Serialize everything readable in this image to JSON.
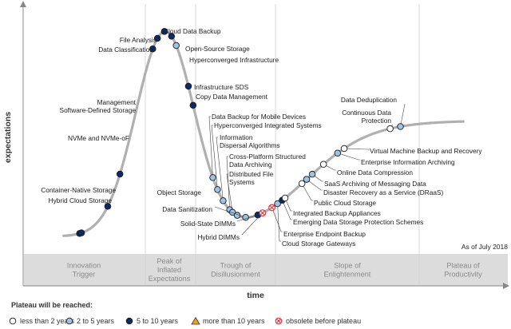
{
  "chart_data": {
    "type": "scatter",
    "xlabel": "time",
    "ylabel": "expectations",
    "as_of": "As of July 2018",
    "phases": [
      {
        "lines": [
          "Innovation",
          "Trigger"
        ]
      },
      {
        "lines": [
          "Peak of",
          "Inflated",
          "Expectations"
        ]
      },
      {
        "lines": [
          "Trough of",
          "Disillusionment"
        ]
      },
      {
        "lines": [
          "Slope of",
          "Enlightenment"
        ]
      },
      {
        "lines": [
          "Plateau of",
          "Productivity"
        ]
      }
    ],
    "legend": {
      "title": "Plateau will be reached:",
      "items": [
        {
          "key": "lt2",
          "label": "less than 2 years",
          "marker": "circle",
          "color": "#ffffff"
        },
        {
          "key": "2to5",
          "label": "2 to 5 years",
          "marker": "circle",
          "color": "#9dc3e6"
        },
        {
          "key": "5to10",
          "label": "5 to 10 years",
          "marker": "circle",
          "color": "#0b2a6b"
        },
        {
          "key": "gt10",
          "label": "more than 10 years",
          "marker": "triangle",
          "color": "#f0a020"
        },
        {
          "key": "obsolete",
          "label": "obsolete before plateau",
          "marker": "crossed",
          "color": "#e8313a"
        }
      ]
    },
    "technologies": [
      {
        "name": "Hybrid Cloud Storage",
        "t": 0.305,
        "cat": "5to10",
        "lines": [
          "Hybrid Cloud Storage"
        ]
      },
      {
        "name": "Container-Native Storage",
        "t": 0.315,
        "cat": "5to10",
        "lines": [
          "Container-Native Storage"
        ]
      },
      {
        "name": "NVMe and NVMe-oF",
        "t": 0.455,
        "cat": "5to10",
        "lines": [
          "NVMe and NVMe-oF"
        ]
      },
      {
        "name": "Management Software-Defined Storage",
        "t": 0.52,
        "cat": "5to10",
        "lines": [
          "Management",
          "Software-Defined Storage"
        ]
      },
      {
        "name": "Data Classification",
        "t": 0.695,
        "cat": "5to10",
        "lines": [
          "Data Classification"
        ]
      },
      {
        "name": "File Analysis",
        "t": 0.72,
        "cat": "5to10",
        "lines": [
          "File Analysis"
        ]
      },
      {
        "name": "Cloud Data Backup",
        "t": 0.757,
        "cat": "5to10",
        "lines": [
          "Cloud Data Backup"
        ]
      },
      {
        "name": "Open-Source Storage",
        "t": 0.795,
        "cat": "5to10",
        "lines": [
          "Open-Source Storage"
        ]
      },
      {
        "name": "Hyperconverged Infrastructure",
        "t": 0.82,
        "cat": "2to5",
        "lines": [
          "Hyperconverged Infrastructure"
        ]
      },
      {
        "name": "Infrastructure SDS",
        "t": 0.885,
        "cat": "5to10",
        "lines": [
          "Infrastructure SDS"
        ]
      },
      {
        "name": "Copy Data Management",
        "t": 0.91,
        "cat": "5to10",
        "lines": [
          "Copy Data Management"
        ]
      },
      {
        "name": "Data Backup for Mobile Devices",
        "t": 1.015,
        "cat": "2to5",
        "lines": [
          "Data Backup for Mobile Devices"
        ]
      },
      {
        "name": "Hyperconverged Integrated Systems",
        "t": 1.04,
        "cat": "2to5",
        "lines": [
          "Hyperconverged Integrated Systems"
        ]
      },
      {
        "name": "Information Dispersal Algorithms",
        "t": 1.07,
        "cat": "2to5",
        "lines": [
          "Information",
          "Dispersal Algorithms"
        ]
      },
      {
        "name": "Cross-Platform Structured Data Archiving",
        "t": 1.105,
        "cat": "2to5",
        "lines": [
          "Cross-Platform Structured",
          "Data Archiving"
        ]
      },
      {
        "name": "Distributed File Systems",
        "t": 1.12,
        "cat": "2to5",
        "lines": [
          "Distributed File",
          "Systems"
        ]
      },
      {
        "name": "Object Storage",
        "t": 1.145,
        "cat": "2to5",
        "lines": [
          "Object Storage"
        ]
      },
      {
        "name": "Data Sanitization",
        "t": 1.19,
        "cat": "2to5",
        "lines": [
          "Data Sanitization"
        ]
      },
      {
        "name": "Solid-State DIMMs",
        "t": 1.255,
        "cat": "5to10",
        "lines": [
          "Solid-State DIMMs"
        ]
      },
      {
        "name": "Hybrid DIMMs",
        "t": 1.28,
        "cat": "obsolete",
        "lines": [
          "Hybrid DIMMs"
        ]
      },
      {
        "name": "Enterprise Endpoint Backup",
        "t": 1.33,
        "cat": "obsolete",
        "lines": [
          "Enterprise Endpoint Backup"
        ]
      },
      {
        "name": "Cloud Storage Gateways",
        "t": 1.36,
        "cat": "2to5",
        "lines": [
          "Cloud Storage Gateways"
        ]
      },
      {
        "name": "Emerging Data Storage Protection Schemes",
        "t": 1.385,
        "cat": "5to10",
        "lines": [
          "Emerging Data Storage Protection Schemes"
        ]
      },
      {
        "name": "Integrated Backup Appliances",
        "t": 1.4,
        "cat": "lt2",
        "lines": [
          "Integrated Backup Appliances"
        ]
      },
      {
        "name": "Public Cloud Storage",
        "t": 1.49,
        "cat": "lt2",
        "lines": [
          "Public Cloud Storage"
        ]
      },
      {
        "name": "Disaster Recovery as a Service (DRaaS)",
        "t": 1.515,
        "cat": "2to5",
        "lines": [
          "Disaster Recovery as a Service (DRaaS)"
        ]
      },
      {
        "name": "SaaS Archiving of Messaging Data",
        "t": 1.545,
        "cat": "2to5",
        "lines": [
          "SaaS Archiving of Messaging Data"
        ]
      },
      {
        "name": "Online Data Compression",
        "t": 1.605,
        "cat": "lt2",
        "lines": [
          "Online Data Compression"
        ]
      },
      {
        "name": "Enterprise Information Archiving",
        "t": 1.68,
        "cat": "2to5",
        "lines": [
          "Enterprise Information Archiving"
        ]
      },
      {
        "name": "Virtual Machine Backup and Recovery",
        "t": 1.715,
        "cat": "lt2",
        "lines": [
          "Virtual Machine Backup and Recovery"
        ]
      },
      {
        "name": "Continuous Data Protection",
        "t": 1.96,
        "cat": "lt2",
        "lines": [
          "Continuous Data",
          "Protection"
        ]
      },
      {
        "name": "Data Deduplication",
        "t": 2.015,
        "cat": "2to5",
        "lines": [
          "Data Deduplication"
        ]
      }
    ]
  }
}
